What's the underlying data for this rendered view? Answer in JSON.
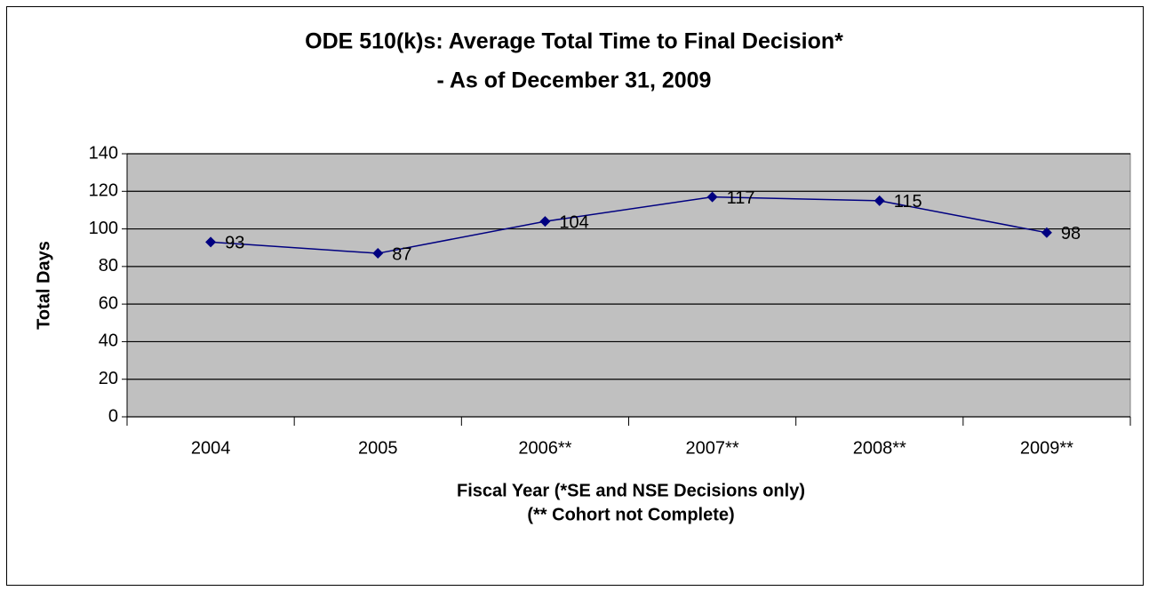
{
  "chart_data": {
    "type": "line",
    "title": "ODE 510(k)s:  Average Total Time to Final Decision*",
    "subtitle": "- As of December 31, 2009",
    "xlabel": [
      "Fiscal Year (*SE and NSE Decisions only)",
      "(** Cohort not Complete)"
    ],
    "ylabel": "Total Days",
    "categories": [
      "2004",
      "2005",
      "2006**",
      "2007**",
      "2008**",
      "2009**"
    ],
    "series": [
      {
        "name": "Total Days",
        "color": "#000080",
        "values": [
          93,
          87,
          104,
          117,
          115,
          98
        ]
      }
    ],
    "ylim": [
      0,
      140
    ],
    "yticks": [
      0,
      20,
      40,
      60,
      80,
      100,
      120,
      140
    ],
    "grid": true
  }
}
